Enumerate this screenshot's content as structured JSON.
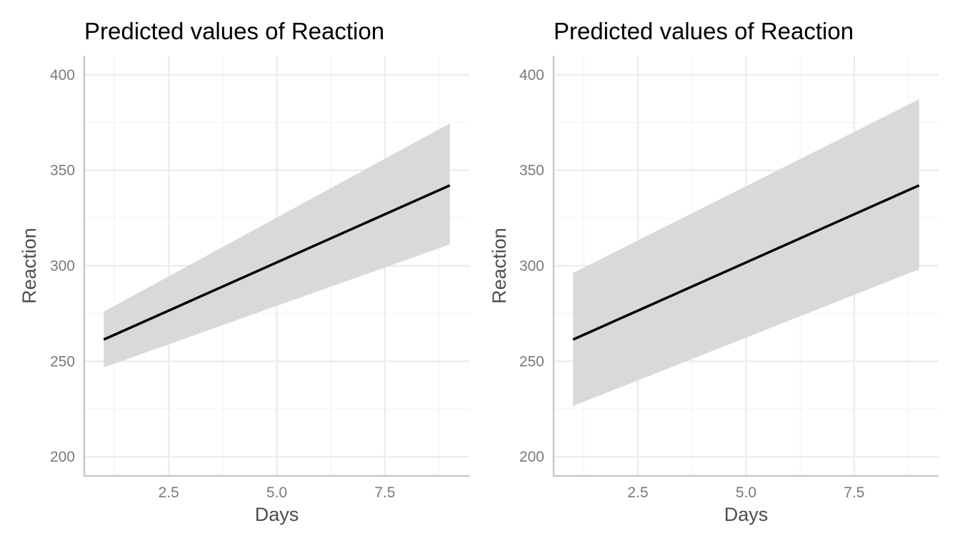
{
  "chart_data": [
    {
      "type": "line",
      "title": "Predicted values of Reaction",
      "xlabel": "Days",
      "ylabel": "Reaction",
      "xlim": [
        0.55,
        9.45
      ],
      "ylim": [
        190,
        410
      ],
      "xticks": [
        "2.5",
        "5.0",
        "7.5"
      ],
      "xtick_values": [
        2.5,
        5.0,
        7.5
      ],
      "xminor": [
        1.25,
        3.75,
        6.25,
        8.75
      ],
      "yticks": [
        "200",
        "250",
        "300",
        "350",
        "400"
      ],
      "ytick_values": [
        200,
        250,
        300,
        350,
        400
      ],
      "yminor": [
        225,
        275,
        325,
        375
      ],
      "grid": true,
      "series": [
        {
          "x": [
            1,
            9
          ],
          "y": [
            261.4,
            342.1
          ],
          "ci_low": [
            246.8,
            311.2
          ],
          "ci_high": [
            276.0,
            374.5
          ]
        }
      ]
    },
    {
      "type": "line",
      "title": "Predicted values of Reaction",
      "xlabel": "Days",
      "ylabel": "Reaction",
      "xlim": [
        0.55,
        9.45
      ],
      "ylim": [
        190,
        410
      ],
      "xticks": [
        "2.5",
        "5.0",
        "7.5"
      ],
      "xtick_values": [
        2.5,
        5.0,
        7.5
      ],
      "xminor": [
        1.25,
        3.75,
        6.25,
        8.75
      ],
      "yticks": [
        "200",
        "250",
        "300",
        "350",
        "400"
      ],
      "ytick_values": [
        200,
        250,
        300,
        350,
        400
      ],
      "yminor": [
        225,
        275,
        325,
        375
      ],
      "grid": true,
      "series": [
        {
          "x": [
            1,
            9
          ],
          "y": [
            261.4,
            342.1
          ],
          "ci_low": [
            226.6,
            298.2
          ],
          "ci_high": [
            296.2,
            387.2
          ]
        }
      ]
    }
  ]
}
